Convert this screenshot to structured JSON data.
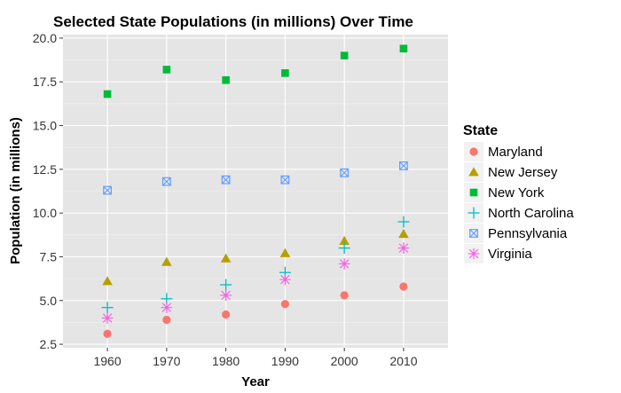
{
  "chart_data": {
    "type": "scatter",
    "title": "Selected State Populations (in millions) Over Time",
    "xlabel": "Year",
    "ylabel": "Population (in millions)",
    "x": [
      1960,
      1970,
      1980,
      1990,
      2000,
      2010
    ],
    "x_ticks": [
      "1960",
      "1970",
      "1980",
      "1990",
      "2000",
      "2010"
    ],
    "xlim": [
      1952.5,
      2017.5
    ],
    "y_ticks": [
      "2.5",
      "5.0",
      "7.5",
      "10.0",
      "12.5",
      "15.0",
      "17.5",
      "20.0"
    ],
    "ylim": [
      2.3,
      20.2
    ],
    "grid": true,
    "legend": {
      "title": "State",
      "position": "right"
    },
    "series": [
      {
        "name": "Maryland",
        "shape": "circle",
        "color": "#F8766D",
        "values": [
          3.1,
          3.9,
          4.2,
          4.8,
          5.3,
          5.8
        ]
      },
      {
        "name": "New Jersey",
        "shape": "triangle",
        "color": "#B79F00",
        "values": [
          6.1,
          7.2,
          7.4,
          7.7,
          8.4,
          8.8
        ]
      },
      {
        "name": "New York",
        "shape": "square",
        "color": "#00BA38",
        "values": [
          16.8,
          18.2,
          17.6,
          18.0,
          19.0,
          19.4
        ]
      },
      {
        "name": "North Carolina",
        "shape": "plus",
        "color": "#00BFC4",
        "values": [
          4.6,
          5.1,
          5.9,
          6.6,
          8.0,
          9.5
        ]
      },
      {
        "name": "Pennsylvania",
        "shape": "square-cross",
        "color": "#619CFF",
        "values": [
          11.3,
          11.8,
          11.9,
          11.9,
          12.3,
          12.7
        ]
      },
      {
        "name": "Virginia",
        "shape": "asterisk",
        "color": "#F564E3",
        "values": [
          4.0,
          4.6,
          5.3,
          6.2,
          7.1,
          8.0
        ]
      }
    ]
  }
}
